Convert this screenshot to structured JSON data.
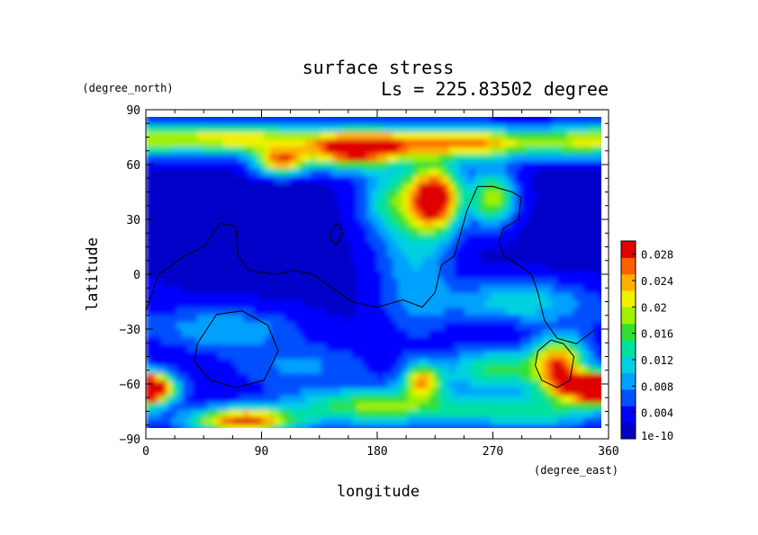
{
  "chart_data": {
    "type": "heatmap",
    "title": "surface stress",
    "subtitle": "Ls = 225.83502 degree",
    "xlabel": "longitude",
    "ylabel": "latitude",
    "x_unit": "(degree_east)",
    "y_unit": "(degree_north)",
    "xlim": [
      0,
      360
    ],
    "ylim": [
      -90,
      90
    ],
    "x_ticks": [
      "0",
      "90",
      "180",
      "270",
      "360"
    ],
    "y_ticks": [
      "90",
      "60",
      "30",
      "0",
      "−30",
      "−60",
      "−90"
    ],
    "colorbar": {
      "range": [
        0,
        0.03
      ],
      "tick_labels": [
        "1e-10",
        "0.004",
        "0.008",
        "0.012",
        "0.016",
        "0.02",
        "0.024",
        "0.028"
      ],
      "colors": [
        "#0000c8",
        "#0000ff",
        "#0050ff",
        "#00a0ff",
        "#00d0e0",
        "#00e0a0",
        "#30e030",
        "#a0f000",
        "#f0f000",
        "#ffb000",
        "#ff6000",
        "#e00000"
      ]
    },
    "field": {
      "description_of_values": "surface stress estimated from colors",
      "background": 0.002,
      "features": [
        {
          "lon": 20,
          "lat": 75,
          "rlon": 40,
          "rlat": 6,
          "v": 0.012
        },
        {
          "lon": 90,
          "lat": 74,
          "rlon": 40,
          "rlat": 6,
          "v": 0.016
        },
        {
          "lon": 105,
          "lat": 62,
          "rlon": 14,
          "rlat": 5,
          "v": 0.022
        },
        {
          "lon": 160,
          "lat": 68,
          "rlon": 25,
          "rlat": 7,
          "v": 0.026
        },
        {
          "lon": 200,
          "lat": 72,
          "rlon": 30,
          "rlat": 6,
          "v": 0.016
        },
        {
          "lon": 260,
          "lat": 72,
          "rlon": 28,
          "rlat": 6,
          "v": 0.02
        },
        {
          "lon": 330,
          "lat": 72,
          "rlon": 30,
          "rlat": 6,
          "v": 0.012
        },
        {
          "lon": 225,
          "lat": 42,
          "rlon": 14,
          "rlat": 12,
          "v": 0.03
        },
        {
          "lon": 270,
          "lat": 42,
          "rlon": 12,
          "rlat": 10,
          "v": 0.018
        },
        {
          "lon": 190,
          "lat": 40,
          "rlon": 16,
          "rlat": 12,
          "v": 0.01
        },
        {
          "lon": 210,
          "lat": 10,
          "rlon": 20,
          "rlat": 30,
          "v": 0.008
        },
        {
          "lon": 290,
          "lat": -15,
          "rlon": 40,
          "rlat": 8,
          "v": 0.01
        },
        {
          "lon": 60,
          "lat": -30,
          "rlon": 40,
          "rlat": 8,
          "v": 0.008
        },
        {
          "lon": 0,
          "lat": -62,
          "rlon": 14,
          "rlat": 6,
          "v": 0.028
        },
        {
          "lon": 75,
          "lat": -80,
          "rlon": 28,
          "rlat": 5,
          "v": 0.026
        },
        {
          "lon": 180,
          "lat": -72,
          "rlon": 50,
          "rlat": 7,
          "v": 0.016
        },
        {
          "lon": 215,
          "lat": -58,
          "rlon": 10,
          "rlat": 6,
          "v": 0.02
        },
        {
          "lon": 275,
          "lat": -52,
          "rlon": 30,
          "rlat": 8,
          "v": 0.014
        },
        {
          "lon": 322,
          "lat": -48,
          "rlon": 14,
          "rlat": 10,
          "v": 0.022
        },
        {
          "lon": 345,
          "lat": -62,
          "rlon": 20,
          "rlat": 5,
          "v": 0.03
        },
        {
          "lon": 120,
          "lat": -50,
          "rlon": 40,
          "rlat": 8,
          "v": 0.006
        },
        {
          "lon": 300,
          "lat": -75,
          "rlon": 40,
          "rlat": 6,
          "v": 0.012
        }
      ]
    },
    "contours": [
      [
        [
          0,
          -20
        ],
        [
          10,
          0
        ],
        [
          30,
          10
        ],
        [
          45,
          15
        ],
        [
          58,
          28
        ],
        [
          70,
          26
        ],
        [
          72,
          10
        ],
        [
          80,
          2
        ],
        [
          100,
          0
        ],
        [
          115,
          2
        ],
        [
          130,
          0
        ],
        [
          140,
          -5
        ],
        [
          160,
          -15
        ],
        [
          180,
          -18
        ],
        [
          200,
          -14
        ],
        [
          215,
          -18
        ],
        [
          225,
          -10
        ],
        [
          230,
          5
        ],
        [
          240,
          10
        ],
        [
          250,
          35
        ],
        [
          258,
          48
        ],
        [
          270,
          48
        ],
        [
          285,
          45
        ],
        [
          292,
          42
        ],
        [
          290,
          30
        ],
        [
          278,
          25
        ],
        [
          275,
          18
        ],
        [
          278,
          10
        ],
        [
          290,
          5
        ],
        [
          300,
          0
        ],
        [
          305,
          -10
        ],
        [
          310,
          -25
        ],
        [
          320,
          -35
        ],
        [
          335,
          -38
        ],
        [
          350,
          -30
        ]
      ],
      [
        [
          145,
          25
        ],
        [
          150,
          28
        ],
        [
          153,
          22
        ],
        [
          148,
          16
        ],
        [
          143,
          20
        ],
        [
          145,
          25
        ]
      ],
      [
        [
          40,
          -38
        ],
        [
          55,
          -22
        ],
        [
          75,
          -20
        ],
        [
          95,
          -28
        ],
        [
          103,
          -42
        ],
        [
          92,
          -58
        ],
        [
          70,
          -62
        ],
        [
          50,
          -58
        ],
        [
          38,
          -48
        ],
        [
          40,
          -38
        ]
      ],
      [
        [
          305,
          -42
        ],
        [
          315,
          -36
        ],
        [
          325,
          -38
        ],
        [
          333,
          -45
        ],
        [
          330,
          -58
        ],
        [
          320,
          -62
        ],
        [
          308,
          -58
        ],
        [
          303,
          -50
        ],
        [
          305,
          -42
        ]
      ]
    ]
  }
}
